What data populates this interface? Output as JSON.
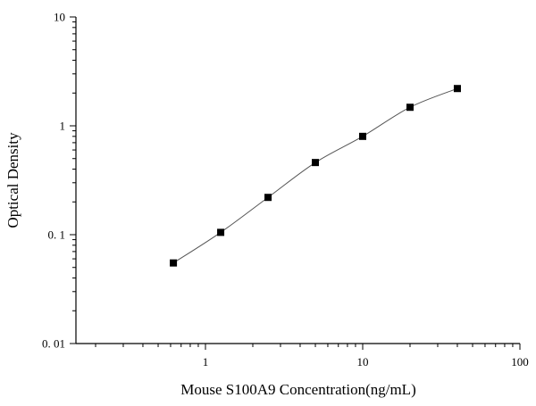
{
  "chart_data": {
    "type": "scatter",
    "title": "",
    "xlabel": "Mouse S100A9 Concentration(ng/mL)",
    "ylabel": "Optical Density",
    "xscale": "log",
    "yscale": "log",
    "xlim": [
      0.15,
      100
    ],
    "ylim": [
      0.01,
      10
    ],
    "x_tick_labels": [
      {
        "value": 1,
        "label": "1"
      },
      {
        "value": 10,
        "label": "10"
      },
      {
        "value": 100,
        "label": "100"
      }
    ],
    "y_tick_labels": [
      {
        "value": 0.01,
        "label": "0. 01"
      },
      {
        "value": 0.1,
        "label": "0. 1"
      },
      {
        "value": 1,
        "label": "1"
      },
      {
        "value": 10,
        "label": "10"
      }
    ],
    "grid": false,
    "legend": "none",
    "fit_curve": true,
    "series": [
      {
        "x": [
          0.625,
          1.25,
          2.5,
          5,
          10,
          20,
          40
        ],
        "y": [
          0.055,
          0.105,
          0.22,
          0.46,
          0.8,
          1.48,
          2.2
        ]
      }
    ],
    "colors": {
      "marker": "#000000",
      "curve": "#555555",
      "axis": "#000000"
    }
  }
}
